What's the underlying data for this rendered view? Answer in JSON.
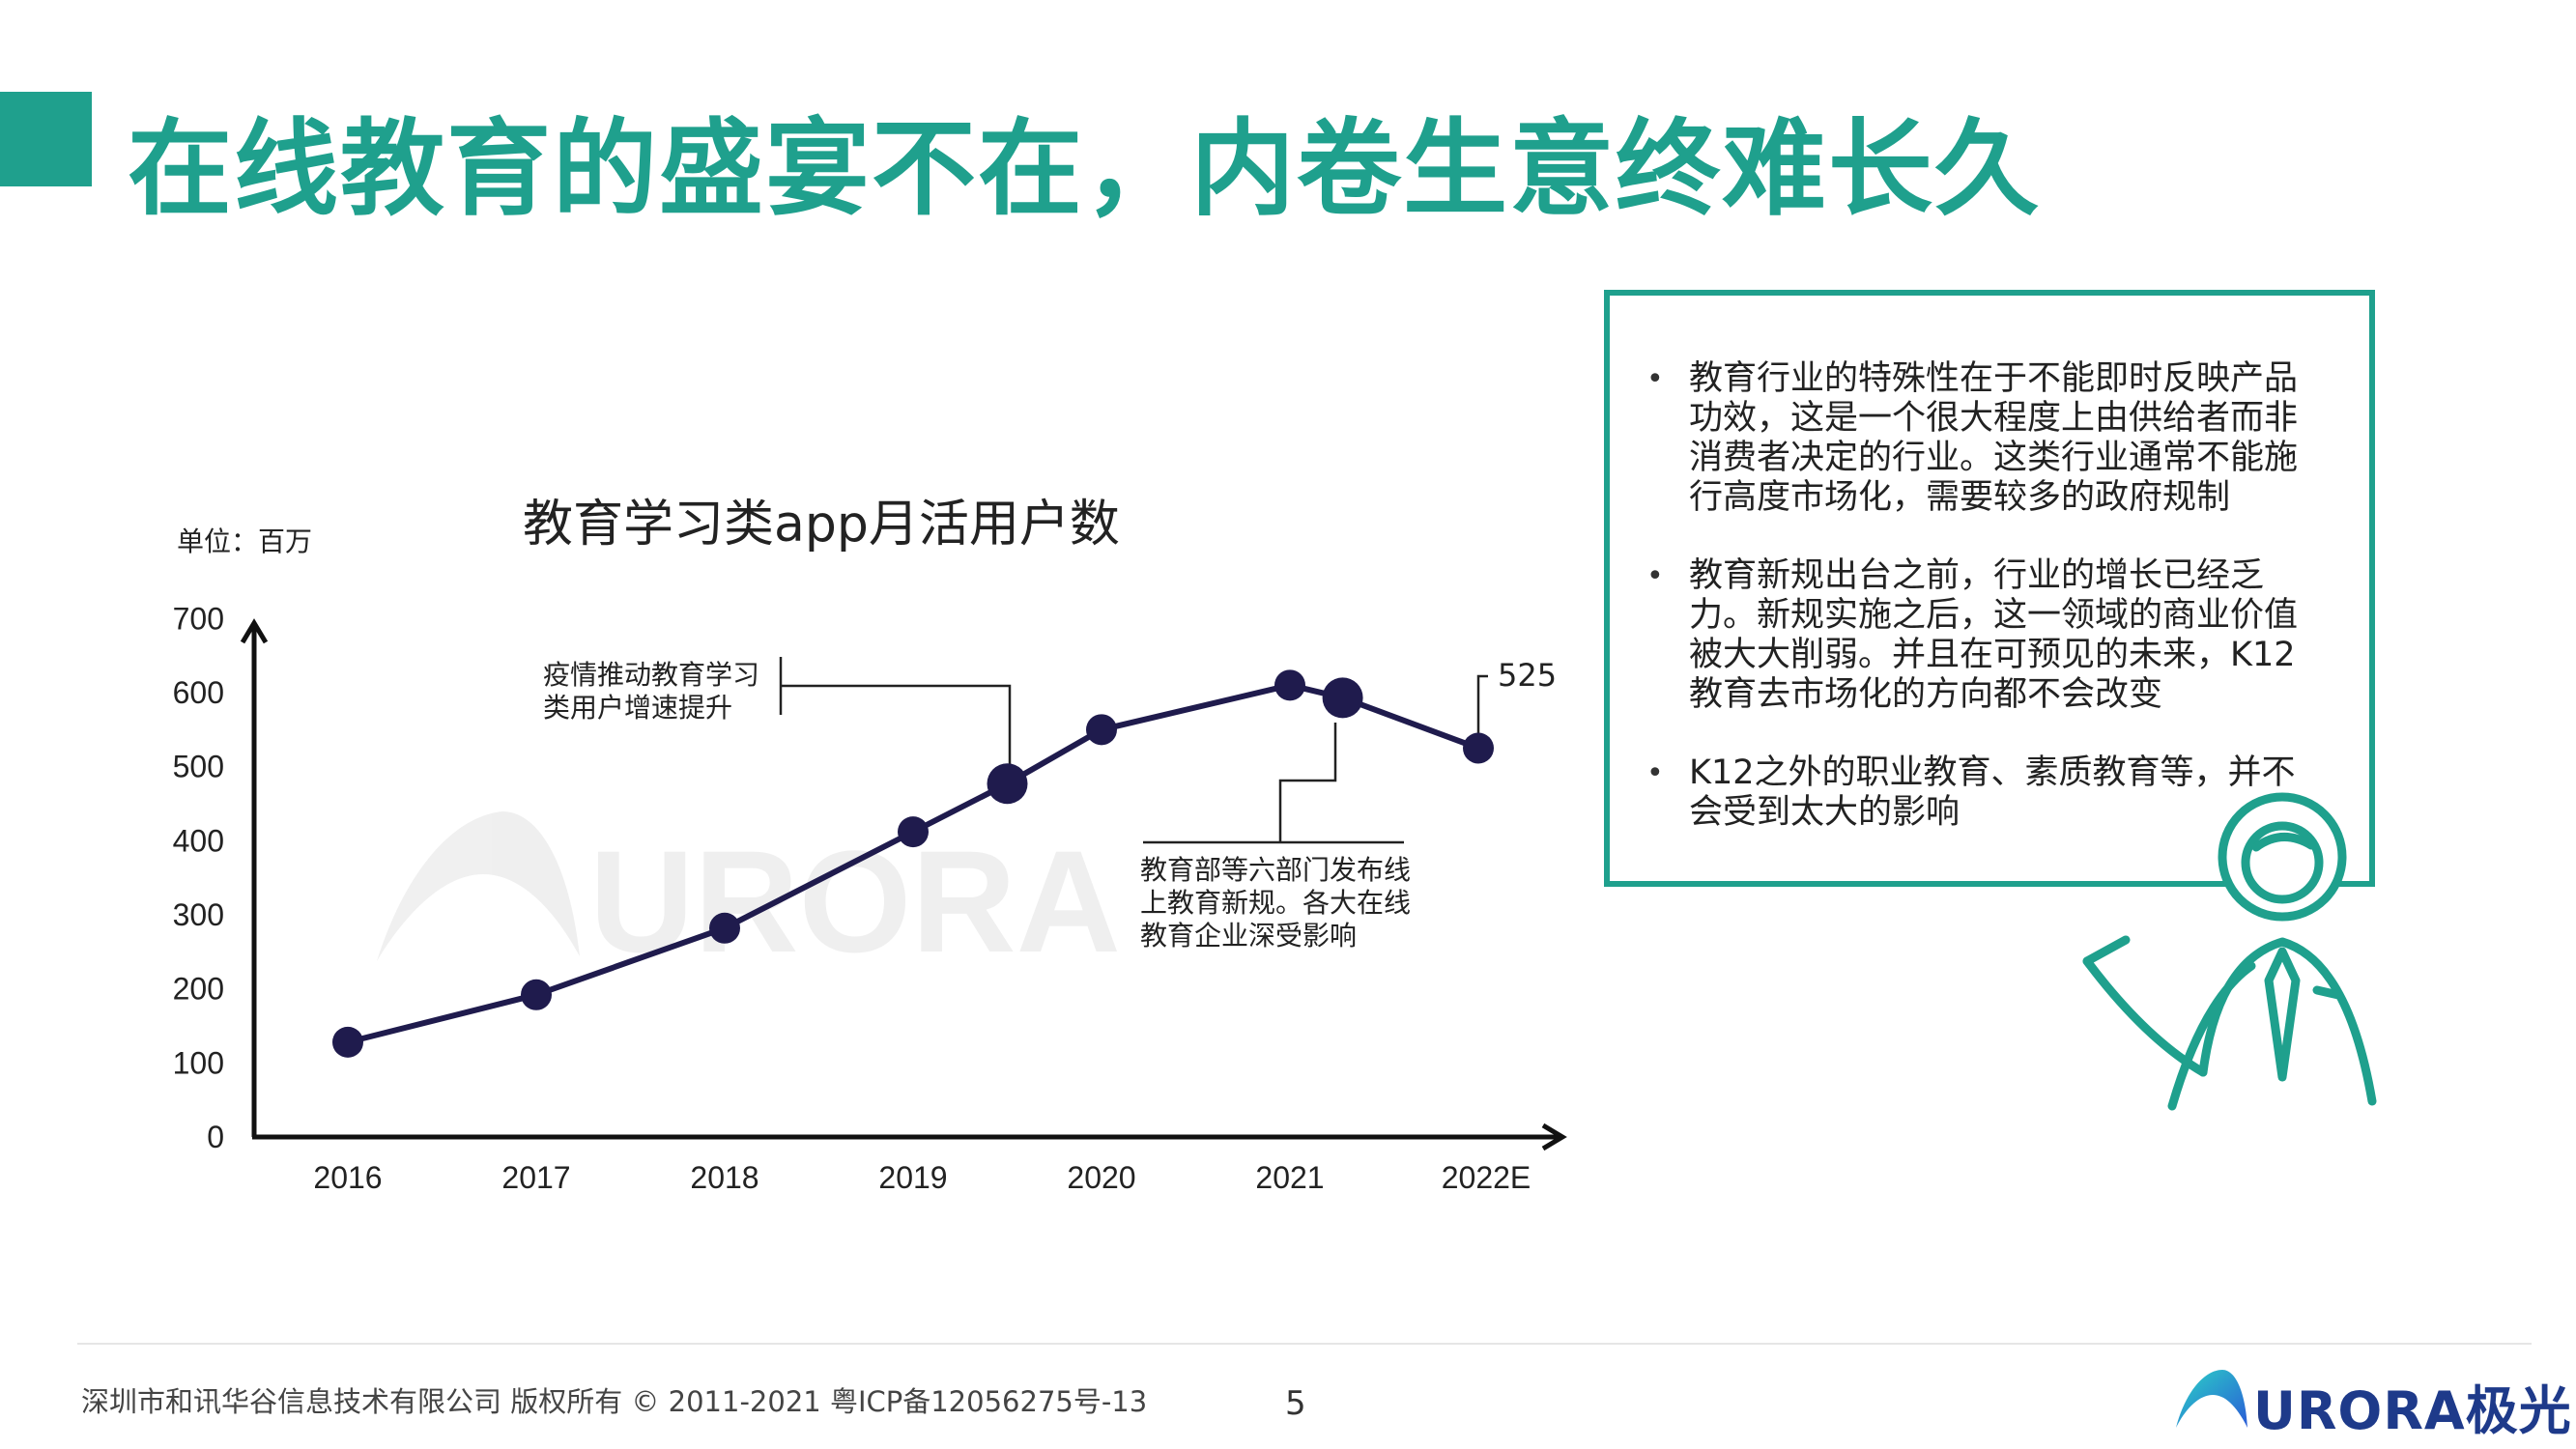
{
  "page_title": "在线教育的盛宴不在，内卷生意终难长久",
  "chart_data": {
    "type": "line",
    "title": "教育学习类app月活用户数",
    "unit_label": "单位：百万",
    "categories": [
      "2016",
      "2017",
      "2018",
      "2019",
      "2020",
      "2021",
      "2022E"
    ],
    "yticks": [
      "0",
      "100",
      "200",
      "300",
      "400",
      "500",
      "600",
      "700"
    ],
    "ylim": [
      0,
      700
    ],
    "series": [
      {
        "points": [
          {
            "x": 0,
            "y": 128,
            "highlight": false
          },
          {
            "x": 1,
            "y": 192,
            "highlight": false
          },
          {
            "x": 2,
            "y": 282,
            "highlight": false
          },
          {
            "x": 3,
            "y": 412,
            "highlight": false
          },
          {
            "x": 3.5,
            "y": 477,
            "highlight": true
          },
          {
            "x": 4,
            "y": 550,
            "highlight": false
          },
          {
            "x": 5,
            "y": 610,
            "highlight": false
          },
          {
            "x": 5.28,
            "y": 593,
            "highlight": true
          },
          {
            "x": 6,
            "y": 525,
            "highlight": false
          }
        ]
      }
    ],
    "data_label": "525",
    "annotations": [
      {
        "line1": "疫情推动教育学习",
        "line2": "类用户增速提升"
      },
      {
        "line1": "教育部等六部门发布线",
        "line2": "上教育新规。各大在线",
        "line3": "教育企业深受影响"
      }
    ],
    "color": "#1f1b4d"
  },
  "notes": [
    "教育行业的特殊性在于不能即时反映产品功效，这是一个很大程度上由供给者而非消费者决定的行业。这类行业通常不能施行高度市场化，需要较多的政府规制",
    "教育新规出台之前，行业的增长已经乏力。新规实施之后，这一领域的商业价值被大大削弱。并且在可预见的未来，K12教育去市场化的方向都不会改变",
    "K12之外的职业教育、素质教育等，并不会受到太大的影响"
  ],
  "footer": {
    "copyright": "深圳市和讯华谷信息技术有限公司 版权所有 © 2011-2021 粤ICP备12056275号-13",
    "page_number": "5",
    "logo_text": "URORA极光"
  },
  "colors": {
    "accent": "#1fa08d",
    "line": "#1f1b4d",
    "logo": "#1e3a8a"
  }
}
